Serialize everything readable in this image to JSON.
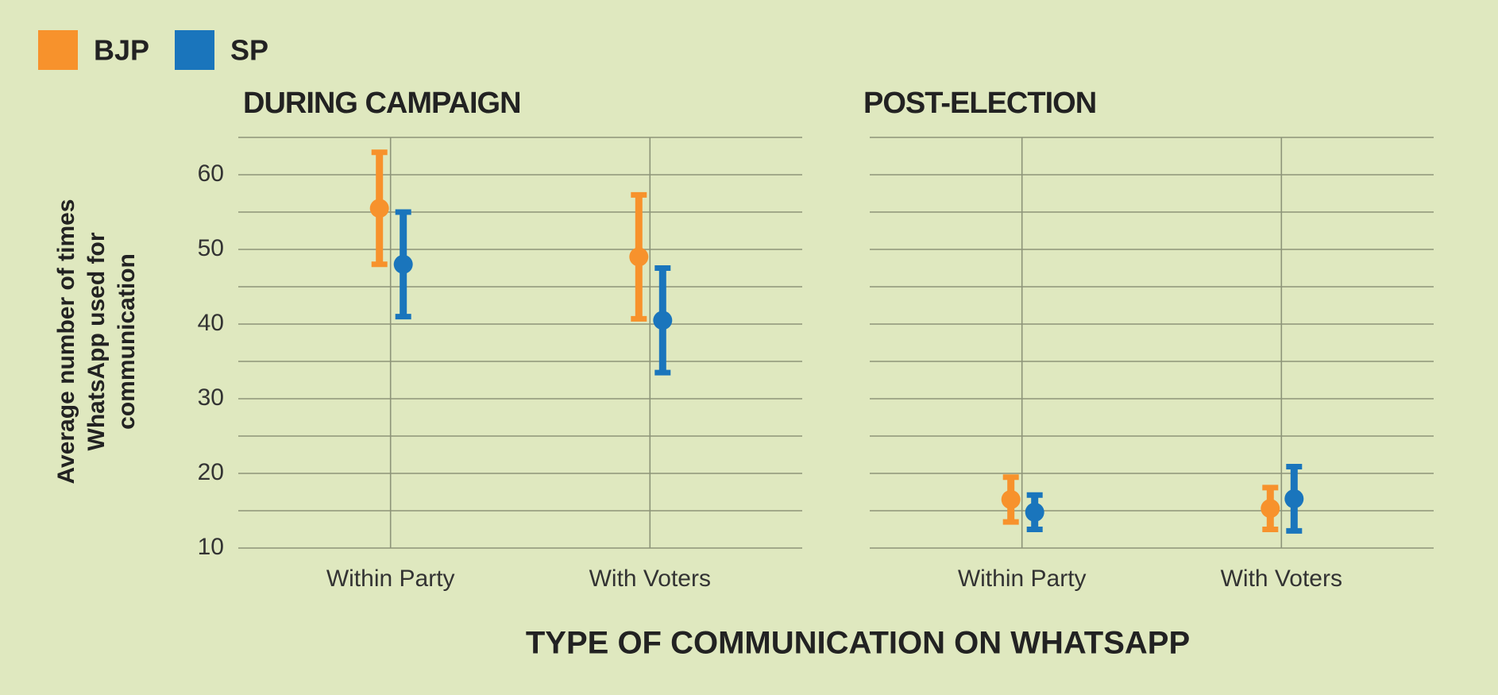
{
  "chart_data": {
    "type": "errorbar",
    "legend": [
      {
        "name": "BJP",
        "color": "#f7922c"
      },
      {
        "name": "SP",
        "color": "#1a75bc"
      }
    ],
    "ylabel": [
      "Average number of times",
      "WhatsApp used for",
      "communication"
    ],
    "xlabel": "TYPE OF COMMUNICATION ON WHATSAPP",
    "ylim": [
      10,
      65
    ],
    "yticks": [
      10,
      20,
      30,
      40,
      50,
      60
    ],
    "ygrid": [
      10,
      15,
      20,
      25,
      30,
      35,
      40,
      45,
      50,
      55,
      60,
      65
    ],
    "panels": [
      {
        "title": "DURING CAMPAIGN",
        "categories": [
          "Within Party",
          "With Voters"
        ],
        "series": [
          {
            "values": [
              55.5,
              49
            ],
            "errors": [
              7.5,
              8.3
            ]
          },
          {
            "values": [
              48,
              40.5
            ],
            "errors": [
              7,
              7
            ]
          }
        ]
      },
      {
        "title": "POST-ELECTION",
        "categories": [
          "Within Party",
          "With Voters"
        ],
        "series": [
          {
            "values": [
              16.5,
              15.3
            ],
            "errors": [
              3,
              2.8
            ]
          },
          {
            "values": [
              14.8,
              16.6
            ],
            "errors": [
              2.3,
              4.3
            ]
          }
        ]
      }
    ]
  }
}
